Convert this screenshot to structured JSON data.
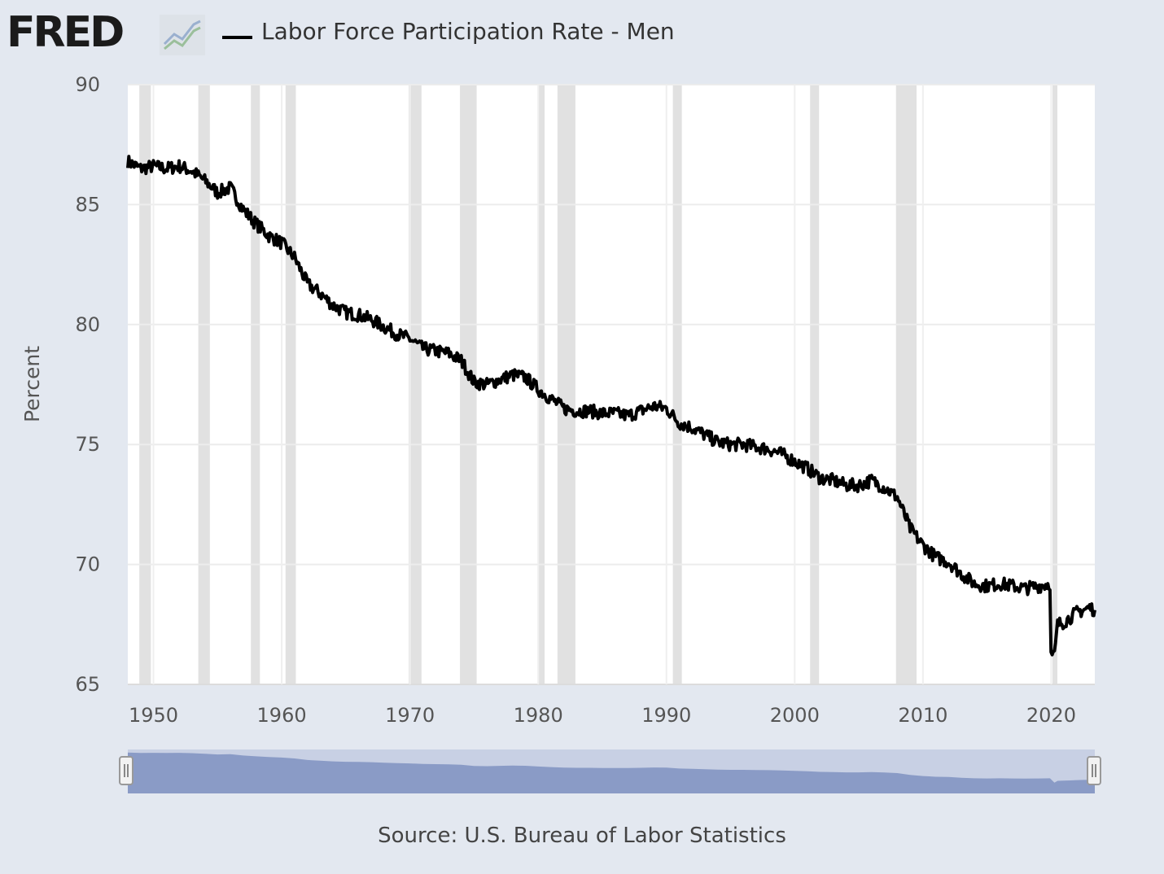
{
  "header": {
    "logo_text": "FRED",
    "series_title": "Labor Force Participation Rate - Men"
  },
  "source": "Source: U.S. Bureau of Labor Statistics",
  "colors": {
    "background": "#e3e8f0",
    "plot_background": "#ffffff",
    "series_line": "#000000",
    "recession_band": "#e1e1e1",
    "navigator_fill": "#8a9bc6"
  },
  "chart_data": {
    "type": "line",
    "title": "Labor Force Participation Rate - Men",
    "ylabel": "Percent",
    "xlabel": "",
    "xlim": [
      1948,
      2023.4
    ],
    "ylim": [
      65,
      90
    ],
    "x_ticks": [
      1950,
      1960,
      1970,
      1980,
      1990,
      2000,
      2010,
      2020
    ],
    "y_ticks": [
      65,
      70,
      75,
      80,
      85,
      90
    ],
    "grid": true,
    "legend": "top-left",
    "recessions": [
      [
        1948.9,
        1949.8
      ],
      [
        1953.5,
        1954.4
      ],
      [
        1957.6,
        1958.3
      ],
      [
        1960.3,
        1961.1
      ],
      [
        1969.9,
        1970.9
      ],
      [
        1973.9,
        1975.2
      ],
      [
        1980.0,
        1980.5
      ],
      [
        1981.5,
        1982.9
      ],
      [
        1990.5,
        1991.2
      ],
      [
        2001.2,
        2001.9
      ],
      [
        2007.9,
        2009.5
      ],
      [
        2020.1,
        2020.3
      ]
    ],
    "series": [
      {
        "name": "Labor Force Participation Rate - Men",
        "x": [
          1948.0,
          1949.0,
          1950.0,
          1951.0,
          1952.0,
          1953.0,
          1954.0,
          1955.0,
          1956.0,
          1957.0,
          1958.0,
          1959.0,
          1960.0,
          1961.0,
          1962.0,
          1963.0,
          1964.0,
          1965.0,
          1966.0,
          1967.0,
          1968.0,
          1969.0,
          1970.0,
          1971.0,
          1972.0,
          1973.0,
          1974.0,
          1975.0,
          1976.0,
          1977.0,
          1978.0,
          1979.0,
          1980.0,
          1981.0,
          1982.0,
          1983.0,
          1984.0,
          1985.0,
          1986.0,
          1987.0,
          1988.0,
          1989.0,
          1990.0,
          1991.0,
          1992.0,
          1993.0,
          1994.0,
          1995.0,
          1996.0,
          1997.0,
          1998.0,
          1999.0,
          2000.0,
          2001.0,
          2002.0,
          2003.0,
          2004.0,
          2005.0,
          2006.0,
          2007.0,
          2008.0,
          2009.0,
          2010.0,
          2011.0,
          2012.0,
          2013.0,
          2014.0,
          2015.0,
          2016.0,
          2017.0,
          2018.0,
          2019.0,
          2019.9,
          2020.25,
          2020.5,
          2021.0,
          2021.5,
          2022.0,
          2022.5,
          2023.0,
          2023.4
        ],
        "values": [
          86.8,
          86.5,
          86.6,
          86.5,
          86.6,
          86.4,
          86.0,
          85.5,
          85.7,
          84.8,
          84.2,
          83.7,
          83.4,
          82.8,
          81.7,
          81.3,
          80.8,
          80.5,
          80.4,
          80.2,
          79.9,
          79.6,
          79.4,
          79.0,
          78.9,
          78.8,
          78.5,
          77.6,
          77.5,
          77.7,
          77.9,
          77.8,
          77.3,
          76.9,
          76.5,
          76.4,
          76.4,
          76.3,
          76.3,
          76.2,
          76.4,
          76.6,
          76.5,
          75.9,
          75.7,
          75.4,
          75.1,
          75.0,
          75.0,
          74.9,
          74.8,
          74.6,
          74.3,
          74.0,
          73.6,
          73.5,
          73.3,
          73.3,
          73.5,
          73.2,
          72.8,
          71.5,
          70.8,
          70.3,
          70.1,
          69.6,
          69.2,
          69.1,
          69.2,
          69.1,
          69.0,
          69.1,
          69.2,
          66.2,
          67.5,
          67.6,
          67.8,
          68.0,
          68.1,
          68.2,
          68.1
        ]
      }
    ]
  }
}
